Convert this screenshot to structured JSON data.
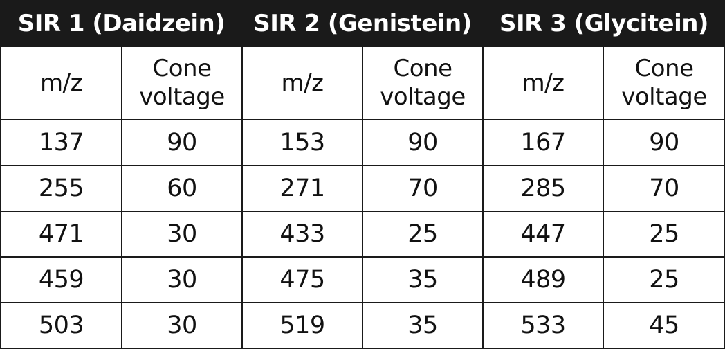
{
  "table": {
    "groups": [
      {
        "title": "SIR 1 (Daidzein)",
        "mz_label": "m/z",
        "cone_line1": "Cone",
        "cone_line2": "voltage"
      },
      {
        "title": "SIR 2 (Genistein)",
        "mz_label": "m/z",
        "cone_line1": "Cone",
        "cone_line2": "voltage"
      },
      {
        "title": "SIR 3 (Glycitein)",
        "mz_label": "m/z",
        "cone_line1": "Cone",
        "cone_line2": "voltage"
      }
    ],
    "rows": [
      [
        "137",
        "90",
        "153",
        "90",
        "167",
        "90"
      ],
      [
        "255",
        "60",
        "271",
        "70",
        "285",
        "70"
      ],
      [
        "471",
        "30",
        "433",
        "25",
        "447",
        "25"
      ],
      [
        "459",
        "30",
        "475",
        "35",
        "489",
        "25"
      ],
      [
        "503",
        "30",
        "519",
        "35",
        "533",
        "45"
      ]
    ]
  }
}
